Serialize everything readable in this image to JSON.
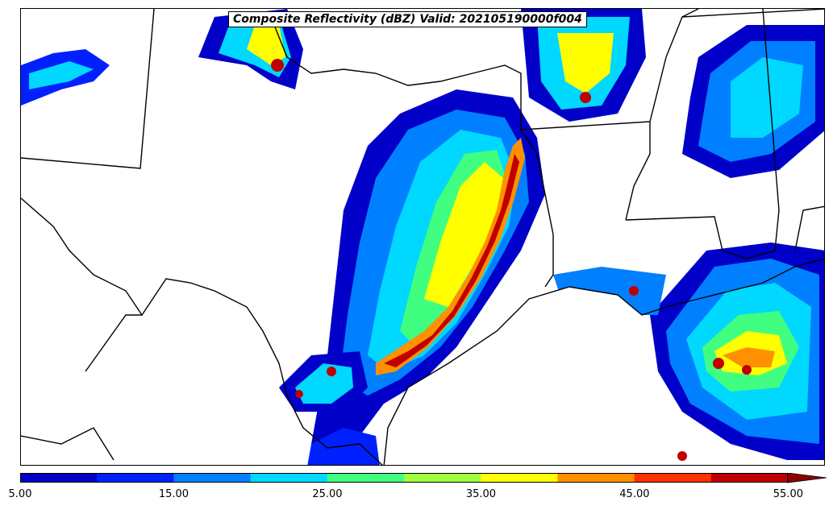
{
  "title": "Composite Reflectivity (dBZ) Valid: 202105190000f004",
  "colorbar": {
    "colors": [
      "#0000c8",
      "#0020ff",
      "#0080ff",
      "#00d8ff",
      "#40ff80",
      "#a0ff40",
      "#ffff00",
      "#ff9000",
      "#ff3000",
      "#c00000"
    ],
    "extend_color": "#8b0000",
    "tick_labels": [
      "5.00",
      "15.00",
      "25.00",
      "35.00",
      "45.00",
      "55.00"
    ],
    "tick_values": [
      5,
      15,
      25,
      35,
      45,
      55
    ],
    "range": [
      5,
      57.5
    ]
  }
}
